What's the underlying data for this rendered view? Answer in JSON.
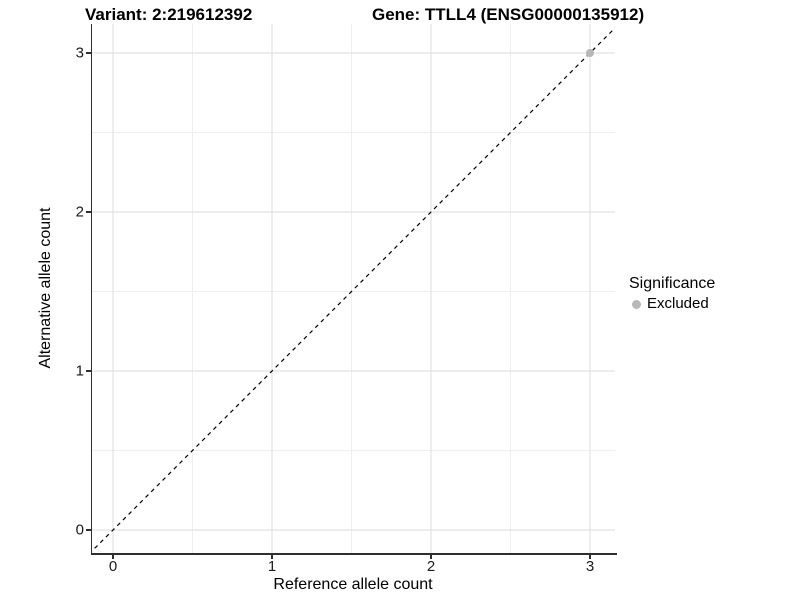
{
  "chart_data": {
    "type": "scatter",
    "title_left": "Variant: 2:219612392",
    "title_right": "Gene: TTLL4 (ENSG00000135912)",
    "xlabel": "Reference allele count",
    "ylabel": "Alternative allele count",
    "x_ticks": [
      0,
      1,
      2,
      3
    ],
    "y_ticks": [
      0,
      1,
      2,
      3
    ],
    "xlim": [
      -0.15,
      3.3
    ],
    "ylim": [
      -0.15,
      3.3
    ],
    "grid": "major and minor gridlines on white background",
    "minor_grid_offset": 0.5,
    "reference_line": {
      "kind": "identity y=x",
      "style": "dashed",
      "color": "#000000"
    },
    "points": [
      {
        "x": 3,
        "y": 3,
        "series": "Excluded"
      }
    ],
    "series": [
      {
        "name": "Excluded",
        "color": "#b8b8b8"
      }
    ],
    "legend": {
      "title": "Significance",
      "position": "right",
      "items": [
        {
          "label": "Excluded",
          "color": "#b8b8b8"
        }
      ]
    },
    "colors": {
      "grid_major": "#e2e2e2",
      "grid_minor": "#efefef",
      "axis": "#2f2f2f",
      "text": "#000000",
      "background": "#ffffff"
    }
  }
}
